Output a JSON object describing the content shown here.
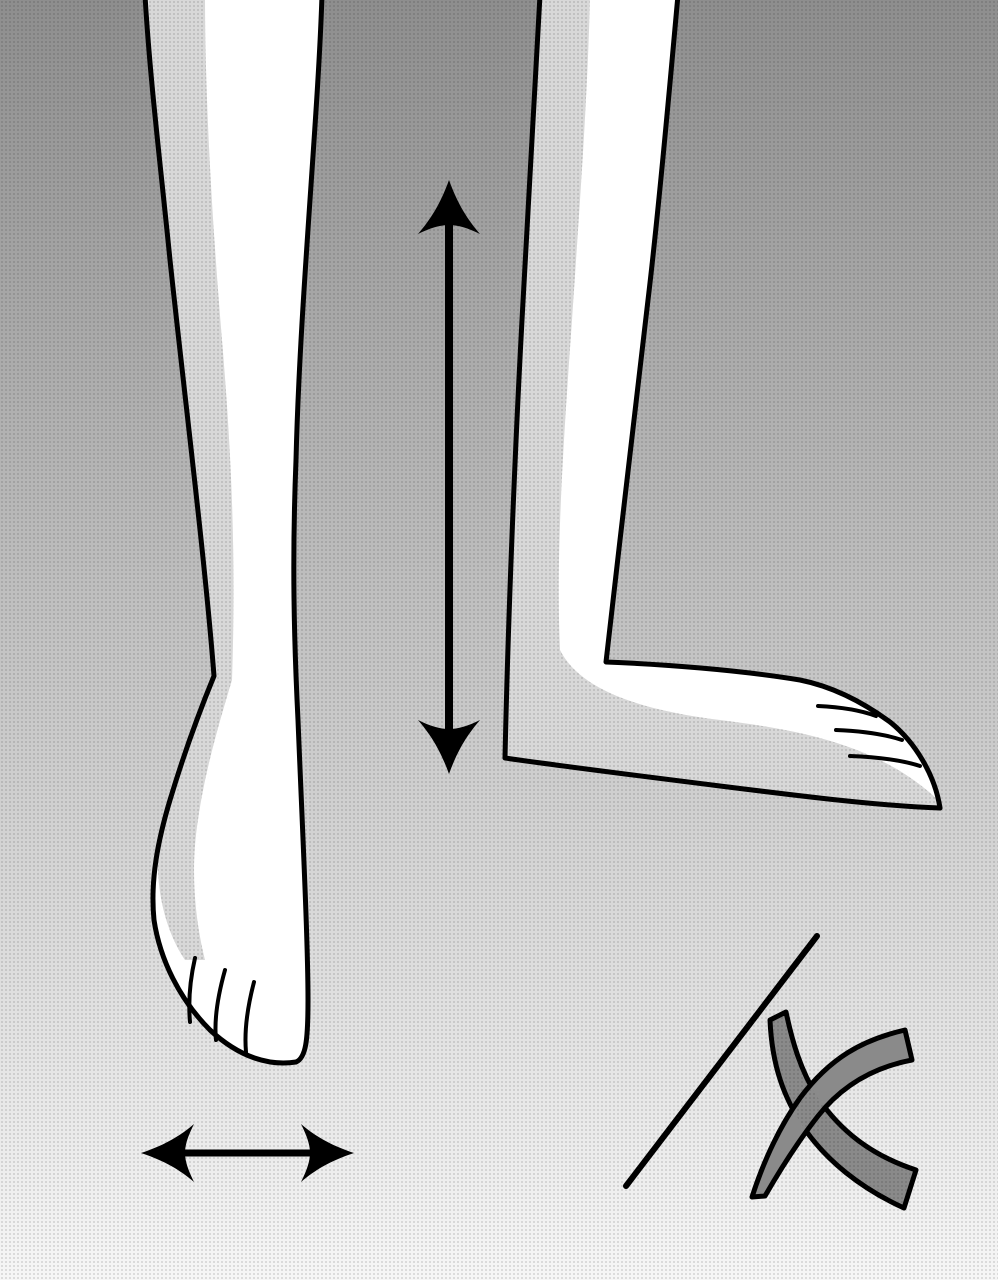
{
  "illustration": {
    "colors": {
      "background_top": "#8e8e8e",
      "background_bottom": "#f6f6f6",
      "skin": "#ffffff",
      "skin_shade": "#d2d2d2",
      "ink": "#000000",
      "x_mark_fill": "#8a8a8a"
    },
    "elements": [
      "left-leg-front-view",
      "right-leg-side-view",
      "vertical-double-arrow-icon",
      "horizontal-double-arrow-icon",
      "diagonal-slash",
      "x-mark-icon"
    ]
  }
}
